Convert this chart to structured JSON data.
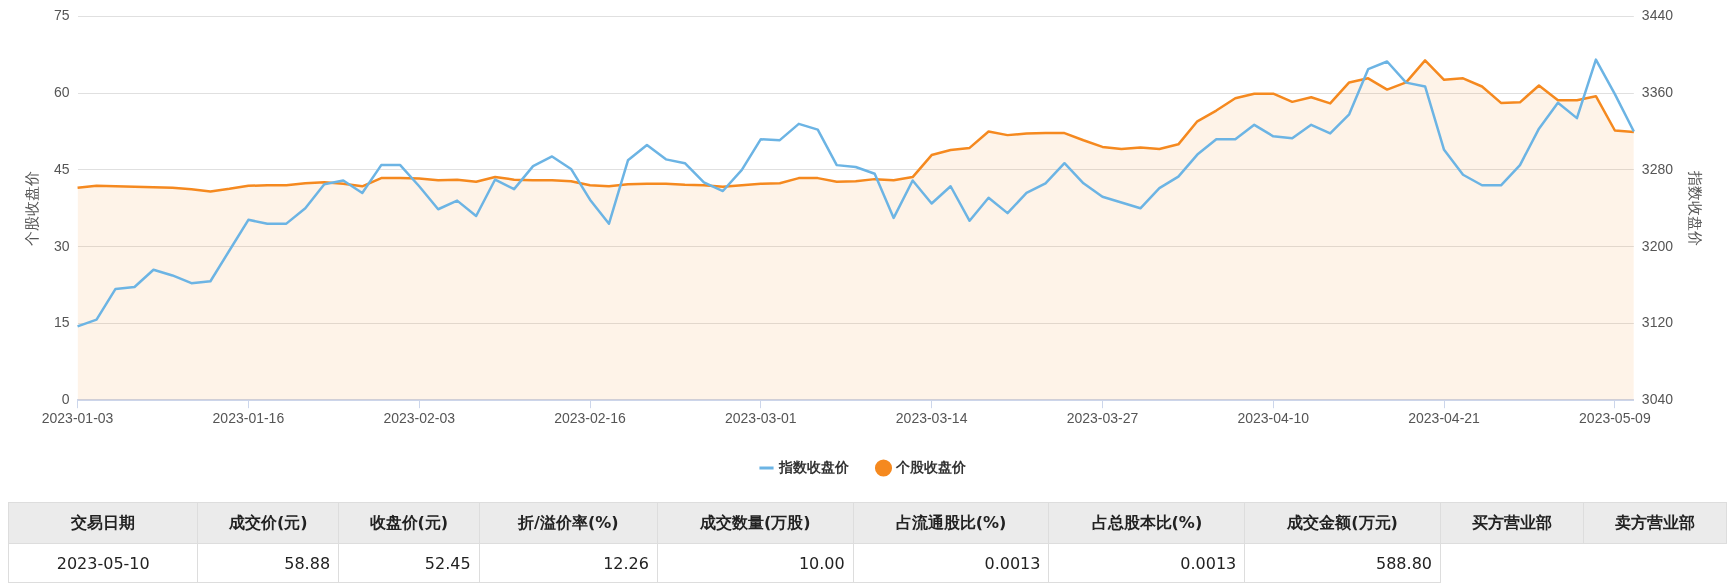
{
  "chart_data": [
    {
      "type": "line",
      "ylabel": "个股收盘价",
      "y2label": "指数收盘价",
      "categories": [
        "2023-01-03",
        null,
        null,
        null,
        null,
        null,
        null,
        null,
        null,
        "2023-01-16",
        null,
        null,
        null,
        null,
        null,
        null,
        null,
        null,
        "2023-02-03",
        null,
        null,
        null,
        null,
        null,
        null,
        null,
        null,
        "2023-02-16",
        null,
        null,
        null,
        null,
        null,
        null,
        null,
        null,
        "2023-03-01",
        null,
        null,
        null,
        null,
        null,
        null,
        null,
        null,
        "2023-03-14",
        null,
        null,
        null,
        null,
        null,
        null,
        null,
        null,
        "2023-03-27",
        null,
        null,
        null,
        null,
        null,
        null,
        null,
        null,
        "2023-04-10",
        null,
        null,
        null,
        null,
        null,
        null,
        null,
        null,
        "2023-04-21",
        null,
        null,
        null,
        null,
        null,
        null,
        null,
        null,
        "2023-05-09",
        null
      ],
      "series": [
        {
          "name": "指数收盘价",
          "type": "line",
          "axis": "y2",
          "color": "#6cb4e4",
          "values": [
            3117,
            3124,
            3156,
            3158,
            3176,
            3170,
            3162,
            3164,
            3196,
            3228,
            3224,
            3224,
            3240,
            3265,
            3269,
            3256,
            3285,
            3285,
            3263,
            3239,
            3248,
            3232,
            3270,
            3260,
            3284,
            3294,
            3281,
            3249,
            3224,
            3290,
            3306,
            3291,
            3287,
            3267,
            3258,
            3280,
            3312,
            3311,
            3328,
            3322,
            3285,
            3283,
            3276,
            3230,
            3269,
            3245,
            3263,
            3227,
            3251,
            3235,
            3256,
            3266,
            3287,
            3266,
            3252,
            3246,
            3240,
            3261,
            3273,
            3296,
            3312,
            3312,
            3327,
            3315,
            3313,
            3327,
            3318,
            3338,
            3385,
            3393,
            3371,
            3367,
            3301,
            3275,
            3264,
            3264,
            3285,
            3323,
            3350,
            3334,
            3395,
            3359,
            3320
          ]
        },
        {
          "name": "个股收盘价",
          "type": "area",
          "color": "#f5891f",
          "values": [
            41.5,
            41.9,
            41.8,
            41.7,
            41.6,
            41.5,
            41.2,
            40.8,
            41.3,
            41.9,
            42.0,
            42.0,
            42.4,
            42.6,
            42.3,
            41.8,
            43.4,
            43.4,
            43.3,
            43.0,
            43.1,
            42.7,
            43.6,
            43.1,
            43.0,
            43.0,
            42.8,
            42.0,
            41.8,
            42.2,
            42.3,
            42.3,
            42.1,
            42.0,
            41.7,
            42.0,
            42.3,
            42.4,
            43.4,
            43.4,
            42.7,
            42.8,
            43.2,
            43.0,
            43.6,
            47.9,
            48.9,
            49.3,
            52.5,
            51.8,
            52.1,
            52.2,
            52.2,
            50.8,
            49.5,
            49.1,
            49.4,
            49.1,
            50.0,
            54.5,
            56.6,
            59.0,
            59.9,
            59.9,
            58.3,
            59.2,
            58.0,
            62.1,
            62.9,
            60.7,
            62.1,
            66.4,
            62.6,
            62.9,
            61.3,
            58.1,
            58.2,
            61.5,
            58.6,
            58.6,
            59.4,
            52.7,
            52.4
          ]
        }
      ],
      "ylim": [
        0,
        75
      ],
      "yticks": [
        0,
        15,
        30,
        45,
        60,
        75
      ],
      "y2lim": [
        3040,
        3440
      ],
      "y2ticks": [
        3040,
        3120,
        3200,
        3280,
        3360,
        3440
      ],
      "grid": "y",
      "legend": "bottom"
    },
    {
      "type": "other",
      "categories": [
        "交易日期",
        "成交价(元)",
        "收盘价(元)",
        "折/溢价率(%)",
        "成交数量(万股)",
        "占流通股比(%)",
        "占总股本比(%)",
        "成交金额(万元)",
        "买方营业部",
        "卖方营业部"
      ],
      "annotations": [
        "2023-05-10",
        "58.88",
        "52.45",
        "12.26",
        "10.00",
        "0.0013",
        "0.0013",
        "588.80"
      ]
    }
  ]
}
